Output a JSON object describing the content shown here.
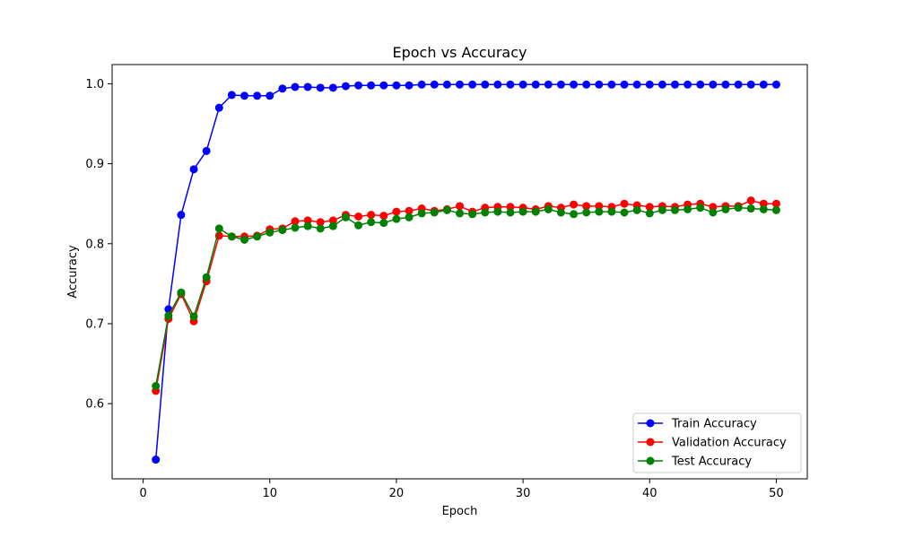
{
  "chart_data": {
    "type": "line",
    "title": "Epoch vs Accuracy",
    "xlabel": "Epoch",
    "ylabel": "Accuracy",
    "xlim": [
      -2.45,
      52.45
    ],
    "ylim": [
      0.506,
      1.024
    ],
    "xticks": [
      0,
      10,
      20,
      30,
      40,
      50
    ],
    "yticks": [
      0.6,
      0.7,
      0.8,
      0.9,
      1.0
    ],
    "ytick_labels": [
      "0.6",
      "0.7",
      "0.8",
      "0.9",
      "1.0"
    ],
    "grid": false,
    "legend_position": "lower-right",
    "x": [
      1,
      2,
      3,
      4,
      5,
      6,
      7,
      8,
      9,
      10,
      11,
      12,
      13,
      14,
      15,
      16,
      17,
      18,
      19,
      20,
      21,
      22,
      23,
      24,
      25,
      26,
      27,
      28,
      29,
      30,
      31,
      32,
      33,
      34,
      35,
      36,
      37,
      38,
      39,
      40,
      41,
      42,
      43,
      44,
      45,
      46,
      47,
      48,
      49,
      50
    ],
    "series": [
      {
        "name": "Train Accuracy",
        "color": "#0000ff",
        "values": [
          0.53,
          0.718,
          0.836,
          0.893,
          0.916,
          0.97,
          0.986,
          0.985,
          0.985,
          0.985,
          0.994,
          0.996,
          0.996,
          0.995,
          0.995,
          0.997,
          0.998,
          0.998,
          0.998,
          0.998,
          0.998,
          0.999,
          0.999,
          0.999,
          0.999,
          0.999,
          0.999,
          0.999,
          0.999,
          0.999,
          0.999,
          0.999,
          0.999,
          0.999,
          0.999,
          0.999,
          0.999,
          0.999,
          0.999,
          0.999,
          0.999,
          0.999,
          0.999,
          0.999,
          0.999,
          0.999,
          0.999,
          0.999,
          0.999,
          0.999
        ]
      },
      {
        "name": "Validation Accuracy",
        "color": "#ff0000",
        "values": [
          0.616,
          0.706,
          0.737,
          0.703,
          0.753,
          0.81,
          0.809,
          0.809,
          0.81,
          0.818,
          0.819,
          0.828,
          0.829,
          0.827,
          0.829,
          0.836,
          0.834,
          0.836,
          0.835,
          0.84,
          0.841,
          0.844,
          0.841,
          0.843,
          0.847,
          0.84,
          0.845,
          0.846,
          0.846,
          0.845,
          0.843,
          0.847,
          0.845,
          0.849,
          0.847,
          0.847,
          0.846,
          0.85,
          0.848,
          0.846,
          0.847,
          0.846,
          0.849,
          0.85,
          0.846,
          0.847,
          0.847,
          0.854,
          0.85,
          0.85
        ]
      },
      {
        "name": "Test Accuracy",
        "color": "#008000",
        "values": [
          0.622,
          0.71,
          0.739,
          0.709,
          0.758,
          0.819,
          0.809,
          0.805,
          0.809,
          0.814,
          0.817,
          0.82,
          0.822,
          0.819,
          0.822,
          0.833,
          0.823,
          0.827,
          0.826,
          0.831,
          0.833,
          0.838,
          0.839,
          0.842,
          0.838,
          0.837,
          0.839,
          0.84,
          0.839,
          0.84,
          0.84,
          0.843,
          0.839,
          0.837,
          0.839,
          0.84,
          0.84,
          0.839,
          0.842,
          0.838,
          0.842,
          0.842,
          0.843,
          0.845,
          0.839,
          0.843,
          0.845,
          0.844,
          0.843,
          0.842
        ]
      }
    ]
  }
}
